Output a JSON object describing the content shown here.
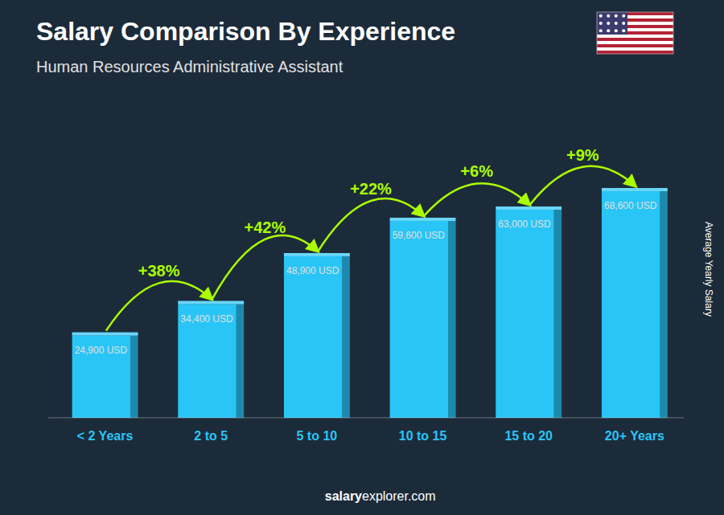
{
  "chart_data": {
    "type": "bar",
    "title": "Salary Comparison By Experience",
    "subtitle": "Human Resources Administrative Assistant",
    "ylabel": "Average Yearly Salary",
    "categories": [
      "< 2 Years",
      "2 to 5",
      "5 to 10",
      "10 to 15",
      "15 to 20",
      "20+ Years"
    ],
    "values": [
      24900,
      34400,
      48900,
      59600,
      63000,
      68600
    ],
    "value_labels": [
      "24,900 USD",
      "34,400 USD",
      "48,900 USD",
      "59,600 USD",
      "63,000 USD",
      "68,600 USD"
    ],
    "data_labels": true,
    "color": "#29c5f6",
    "ylim": [
      0,
      90000
    ],
    "tick_labels": "x",
    "grid": false,
    "annotations": [
      "+38%",
      "+42%",
      "+22%",
      "+6%",
      "+9%"
    ],
    "footer": [
      "salary",
      "explorer.com"
    ]
  }
}
